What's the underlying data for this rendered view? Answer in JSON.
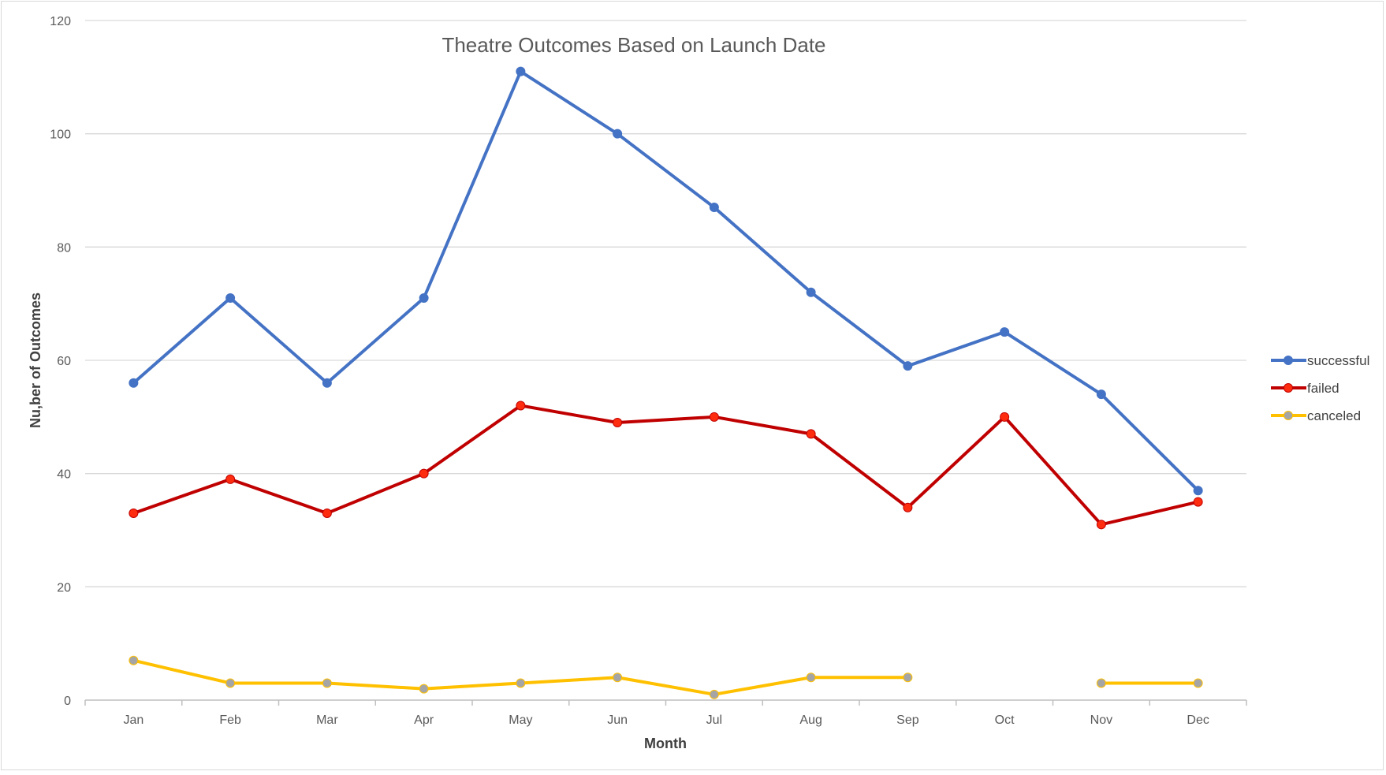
{
  "chart_data": {
    "type": "line",
    "title": "Theatre Outcomes Based on Launch Date",
    "xlabel": "Month",
    "ylabel": "Nu,ber of Outcomes",
    "categories": [
      "Jan",
      "Feb",
      "Mar",
      "Apr",
      "May",
      "Jun",
      "Jul",
      "Aug",
      "Sep",
      "Oct",
      "Nov",
      "Dec"
    ],
    "ylim": [
      0,
      120
    ],
    "yticks": [
      0,
      20,
      40,
      60,
      80,
      100,
      120
    ],
    "grid": true,
    "legend_position": "right",
    "series": [
      {
        "name": "successful",
        "color": "#4472c4",
        "values": [
          56,
          71,
          56,
          71,
          111,
          100,
          87,
          72,
          59,
          65,
          54,
          37
        ]
      },
      {
        "name": "failed",
        "color": "#c00000",
        "marker_color": "#ff2d0f",
        "values": [
          33,
          39,
          33,
          40,
          52,
          49,
          50,
          47,
          34,
          50,
          31,
          35
        ]
      },
      {
        "name": "canceled",
        "color": "#ffc000",
        "marker_color": "#a5a5a5",
        "values": [
          7,
          3,
          3,
          2,
          3,
          4,
          1,
          4,
          4,
          null,
          3,
          3
        ]
      }
    ]
  }
}
